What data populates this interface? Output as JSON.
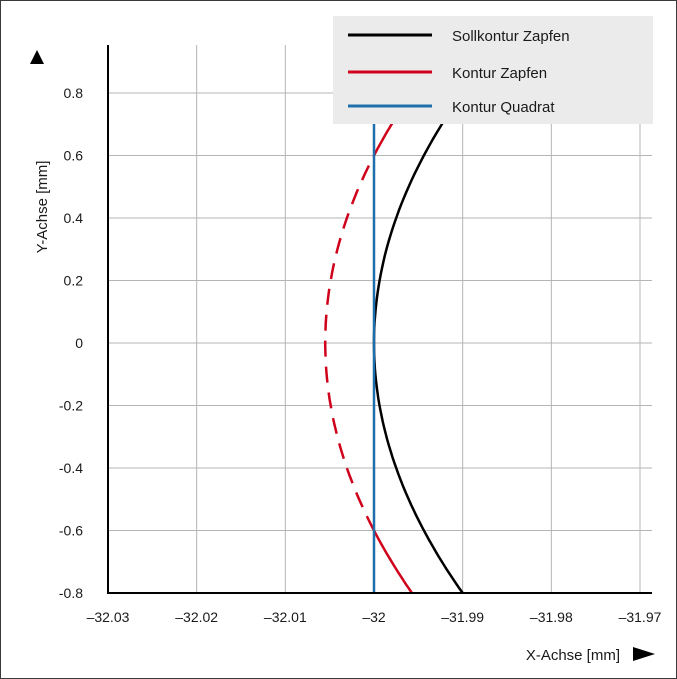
{
  "chart_data": {
    "type": "line",
    "xlabel": "X-Achse [mm]",
    "ylabel": "Y-Achse [mm]",
    "xlim": [
      -32.03,
      -31.97
    ],
    "ylim": [
      -0.8,
      0.9
    ],
    "x_ticks": [
      -32.03,
      -32.02,
      -32.01,
      -32.0,
      -31.99,
      -31.98,
      -31.97
    ],
    "x_tick_labels": [
      "–32.03",
      "–32.02",
      "–32.01",
      "–32",
      "–31.99",
      "–31.98",
      "–31.97"
    ],
    "y_ticks": [
      0.8,
      0.6,
      0.4,
      0.2,
      0,
      -0.2,
      -0.4,
      -0.6,
      -0.8
    ],
    "y_tick_labels": [
      "0.8",
      "0.6",
      "0.4",
      "0.2",
      "0",
      "-0.2",
      "-0.4",
      "-0.6",
      "-0.8"
    ],
    "grid": true,
    "legend_position": "top-right",
    "series": [
      {
        "name": "Sollkontur Zapfen",
        "color": "#000000",
        "style": "solid",
        "points": [
          [
            -32.0,
            0.0
          ],
          [
            -31.9992,
            0.2
          ],
          [
            -31.997,
            0.4
          ],
          [
            -31.9933,
            0.6
          ],
          [
            -31.9906,
            0.7
          ],
          [
            -31.9903,
            0.71
          ],
          [
            -31.9933,
            -0.6
          ],
          [
            -31.997,
            -0.4
          ],
          [
            -31.9992,
            -0.2
          ],
          [
            -31.99,
            -0.8
          ]
        ]
      },
      {
        "name": "Kontur Zapfen",
        "color": "#d0021b",
        "style": "solid-outside, dashed-inside",
        "points": [
          [
            -32.0055,
            0.0
          ],
          [
            -32.0047,
            0.2
          ],
          [
            -32.0025,
            0.4
          ],
          [
            -31.9988,
            0.6
          ],
          [
            -31.996,
            0.71
          ],
          [
            -31.9988,
            -0.6
          ],
          [
            -32.0025,
            -0.4
          ],
          [
            -32.0047,
            -0.2
          ],
          [
            -31.9955,
            -0.8
          ]
        ]
      },
      {
        "name": "Kontur Quadrat",
        "color": "#1f6fad",
        "style": "solid",
        "points": [
          [
            -32.0,
            -0.8
          ],
          [
            -32.0,
            0.71
          ]
        ]
      }
    ]
  }
}
